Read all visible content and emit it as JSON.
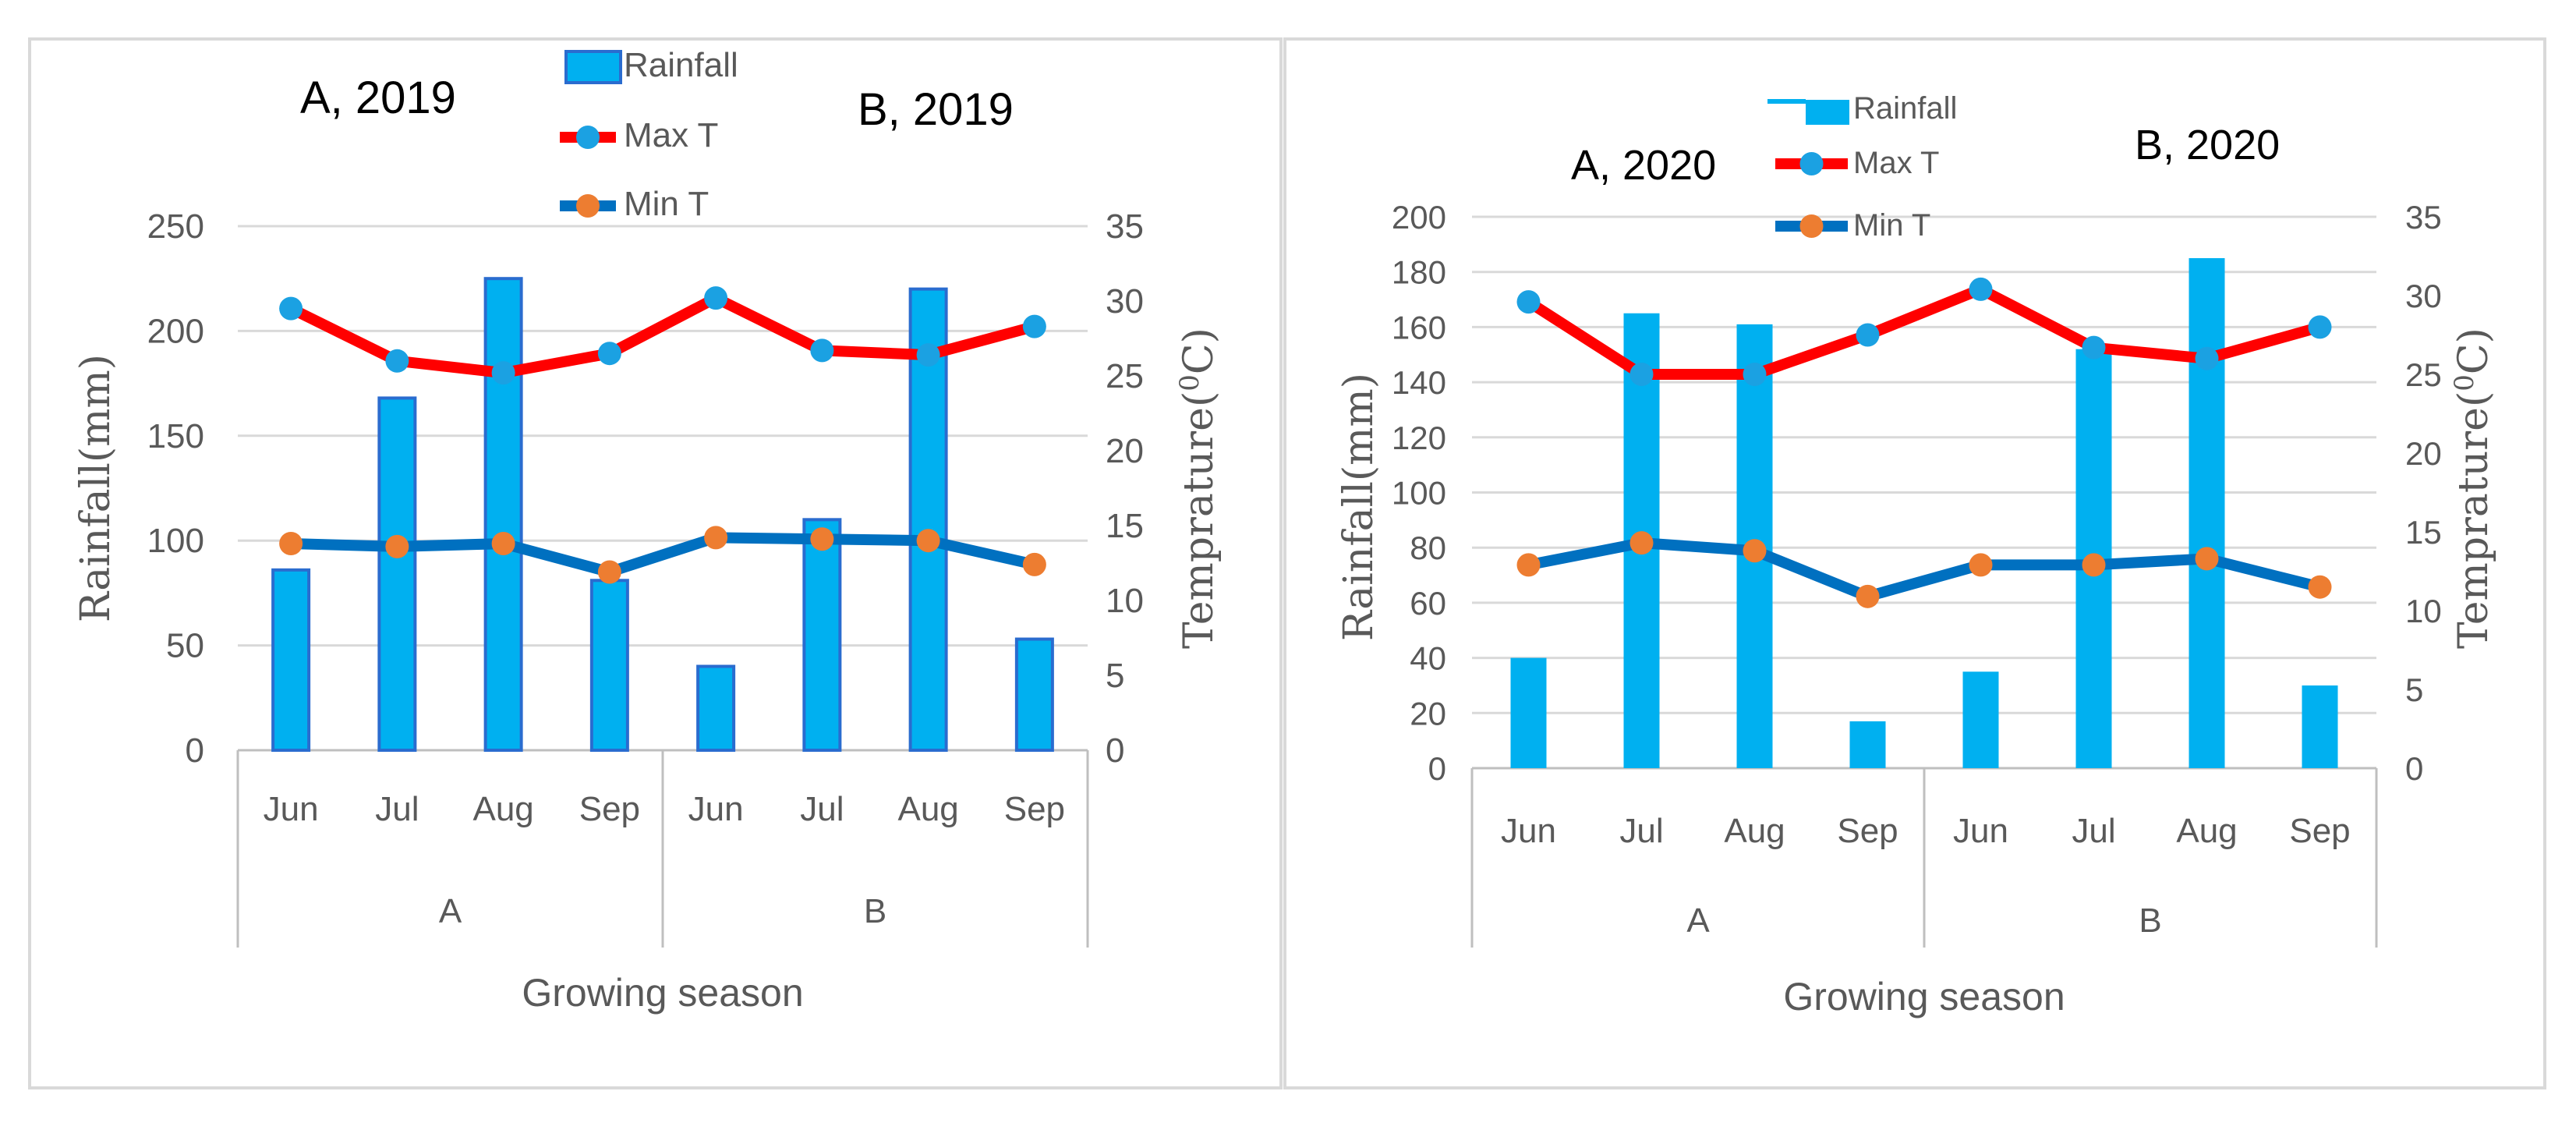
{
  "colors": {
    "rainfall_fill": "#00b0f0",
    "rainfall_edge": "#2a6ccf",
    "max_line": "#ff0000",
    "max_marker": "#1ba1e2",
    "min_line": "#0070c0",
    "min_marker": "#ed7d31",
    "grid": "#d9d9d9",
    "axis_text": "#595959",
    "title_text": "#000000"
  },
  "chart_data": [
    {
      "type": "bar+line",
      "panel_labels": [
        "A, 2019",
        "B, 2019"
      ],
      "categories": [
        "Jun",
        "Jul",
        "Aug",
        "Sep",
        "Jun",
        "Jul",
        "Aug",
        "Sep"
      ],
      "groups": [
        "A",
        "B"
      ],
      "xlabel": "Growing season",
      "ylabel": "Rainfall(mm)",
      "y2label_prefix": "Temprature(",
      "y2label_sup": "0",
      "y2label_suffix": "C)",
      "ylim": [
        0,
        250
      ],
      "yticks": [
        "0",
        "50",
        "100",
        "150",
        "200",
        "250"
      ],
      "y2lim": [
        0,
        35
      ],
      "y2ticks": [
        "0",
        "5",
        "10",
        "15",
        "20",
        "25",
        "30",
        "35"
      ],
      "legend": [
        "Rainfall",
        "Max T",
        "Min T"
      ],
      "series": [
        {
          "name": "Rainfall",
          "kind": "bar",
          "axis": "left",
          "values": [
            86,
            168,
            225,
            81,
            40,
            110,
            220,
            53
          ]
        },
        {
          "name": "Max T",
          "kind": "line",
          "axis": "right",
          "values": [
            29.5,
            26.0,
            25.2,
            26.5,
            30.2,
            26.7,
            26.4,
            28.3
          ]
        },
        {
          "name": "Min T",
          "kind": "line",
          "axis": "right",
          "values": [
            13.8,
            13.6,
            13.8,
            11.9,
            14.2,
            14.1,
            14.0,
            12.4
          ]
        }
      ]
    },
    {
      "type": "bar+line",
      "panel_labels": [
        "A, 2020",
        "B, 2020"
      ],
      "categories": [
        "Jun",
        "Jul",
        "Aug",
        "Sep",
        "Jun",
        "Jul",
        "Aug",
        "Sep"
      ],
      "groups": [
        "A",
        "B"
      ],
      "xlabel": "Growing season",
      "ylabel": "Rainfall(mm)",
      "y2label_prefix": "Temprature(",
      "y2label_sup": "0",
      "y2label_suffix": "C)",
      "ylim": [
        0,
        200
      ],
      "yticks": [
        "0",
        "20",
        "40",
        "60",
        "80",
        "100",
        "120",
        "140",
        "160",
        "180",
        "200"
      ],
      "y2lim": [
        0,
        35
      ],
      "y2ticks": [
        "0",
        "5",
        "10",
        "15",
        "20",
        "25",
        "30",
        "35"
      ],
      "legend": [
        "Rainfall",
        "Max T",
        "Min T"
      ],
      "series": [
        {
          "name": "Rainfall",
          "kind": "bar",
          "axis": "left",
          "values": [
            40,
            165,
            161,
            17,
            35,
            152,
            185,
            30
          ]
        },
        {
          "name": "Max T",
          "kind": "line",
          "axis": "right",
          "values": [
            29.6,
            25.0,
            25.0,
            27.5,
            30.4,
            26.7,
            26.0,
            28.0
          ]
        },
        {
          "name": "Min T",
          "kind": "line",
          "axis": "right",
          "values": [
            12.9,
            14.3,
            13.8,
            10.9,
            12.9,
            12.9,
            13.3,
            11.5
          ]
        }
      ]
    }
  ]
}
